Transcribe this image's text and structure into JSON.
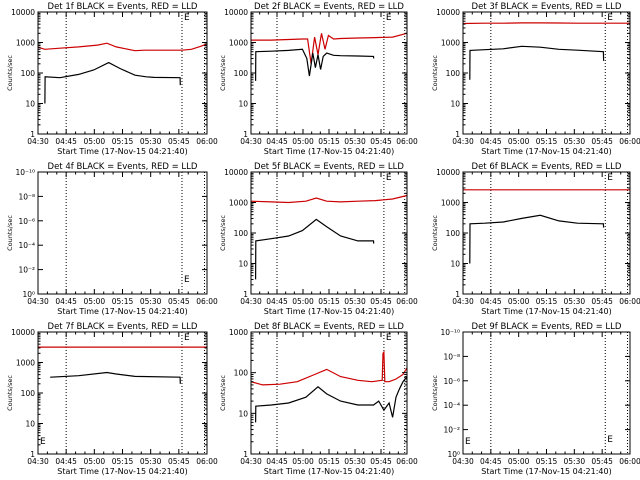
{
  "colors": {
    "events": "#000000",
    "lld": "#cc0000",
    "axis": "#000000",
    "marker": "#000000"
  },
  "common": {
    "ylabel": "Counts/sec",
    "xlabel": "Start Time (17-Nov-15 04:21:40)",
    "xticks": [
      "04:30",
      "04:45",
      "05:00",
      "05:15",
      "05:30",
      "05:45",
      "06:00"
    ],
    "xrange_min": [
      8.33,
      98.33
    ],
    "marker_glyph": "E",
    "dotted_lines_min": [
      23.33,
      85.0,
      97.0
    ],
    "scale": "log"
  },
  "chart_data": [
    {
      "type": "line",
      "title": "Det 1f BLACK = Events, RED = LLD",
      "yticks": [
        "1",
        "10",
        "100",
        "1000",
        "10000"
      ],
      "ylim": [
        1,
        10000
      ],
      "markers": [
        {
          "x": 85.0,
          "y": 10000
        }
      ],
      "series": [
        {
          "name": "RED = LLD",
          "x": [
            8.3,
            12,
            20,
            30,
            40,
            45,
            50,
            55,
            60,
            65,
            70,
            75,
            80,
            85,
            90,
            95,
            98.3
          ],
          "y": [
            700,
            600,
            650,
            720,
            820,
            950,
            720,
            620,
            540,
            560,
            560,
            560,
            560,
            560,
            600,
            750,
            900
          ]
        },
        {
          "name": "BLACK = Events",
          "x": [
            12,
            12.1,
            20,
            30,
            38,
            46,
            52,
            60,
            66,
            70,
            84,
            84.1
          ],
          "y": [
            10,
            75,
            70,
            90,
            125,
            220,
            140,
            85,
            75,
            72,
            70,
            40
          ]
        }
      ]
    },
    {
      "type": "line",
      "title": "Det 2f BLACK = Events, RED = LLD",
      "yticks": [
        "1",
        "10",
        "100",
        "1000",
        "10000"
      ],
      "ylim": [
        1,
        10000
      ],
      "markers": [
        {
          "x": 85.0,
          "y": 10000
        }
      ],
      "series": [
        {
          "name": "RED = LLD",
          "x": [
            8.3,
            20,
            30,
            38,
            41,
            43,
            45,
            47,
            49,
            51,
            53,
            56,
            60,
            70,
            80,
            90,
            98.3
          ],
          "y": [
            1200,
            1200,
            1250,
            1300,
            1300,
            200,
            1500,
            400,
            2000,
            600,
            1700,
            1300,
            1350,
            1400,
            1450,
            1500,
            2000
          ]
        },
        {
          "name": "BLACK = Events",
          "x": [
            11,
            11.1,
            20,
            30,
            38,
            40.5,
            42,
            44,
            45.5,
            47,
            48.5,
            50,
            52,
            56,
            60,
            70,
            79,
            79.1
          ],
          "y": [
            55,
            500,
            520,
            550,
            600,
            300,
            80,
            450,
            150,
            400,
            130,
            350,
            450,
            380,
            370,
            360,
            350,
            300
          ]
        }
      ]
    },
    {
      "type": "line",
      "title": "Det 3f BLACK = Events, RED = LLD",
      "yticks": [
        "1",
        "10",
        "100",
        "1000",
        "10000"
      ],
      "ylim": [
        1,
        10000
      ],
      "markers": [
        {
          "x": 85.0,
          "y": 10000
        }
      ],
      "series": [
        {
          "name": "RED = LLD",
          "x": [
            8.3,
            20,
            30,
            40,
            50,
            60,
            70,
            80,
            90,
            98.3
          ],
          "y": [
            4200,
            4300,
            4300,
            4400,
            4400,
            4350,
            4300,
            4300,
            4300,
            4300
          ]
        },
        {
          "name": "BLACK = Events",
          "x": [
            12,
            12.1,
            20,
            30,
            40,
            50,
            60,
            70,
            84,
            84.1
          ],
          "y": [
            60,
            550,
            580,
            620,
            750,
            700,
            600,
            560,
            500,
            250
          ]
        }
      ]
    },
    {
      "type": "line",
      "title": "Det 4f BLACK = Events, RED = LLD",
      "yticks": [
        "10⁰",
        "10⁻²",
        "10⁻⁴",
        "10⁻⁶",
        "10⁻⁸",
        "10⁻¹⁰"
      ],
      "ylim": [
        1,
        1e-10
      ],
      "markers": [
        {
          "x": 85.0,
          "y": 1e-09
        }
      ],
      "series": []
    },
    {
      "type": "line",
      "title": "Det 5f BLACK = Events, RED = LLD",
      "yticks": [
        "1",
        "10",
        "100",
        "1000",
        "10000"
      ],
      "ylim": [
        1,
        10000
      ],
      "markers": [
        {
          "x": 85.0,
          "y": 10000
        }
      ],
      "series": [
        {
          "name": "RED = LLD",
          "x": [
            8.3,
            20,
            30,
            40,
            46,
            52,
            60,
            70,
            80,
            90,
            98.3
          ],
          "y": [
            1100,
            1050,
            1000,
            1100,
            1400,
            1100,
            1050,
            1100,
            1150,
            1300,
            1700
          ]
        },
        {
          "name": "BLACK = Events",
          "x": [
            11,
            11.1,
            20,
            30,
            38,
            46,
            52,
            60,
            70,
            79,
            79.1
          ],
          "y": [
            3,
            55,
            65,
            80,
            120,
            280,
            160,
            80,
            55,
            55,
            45
          ]
        }
      ]
    },
    {
      "type": "line",
      "title": "Det 6f BLACK = Events, RED = LLD",
      "yticks": [
        "1",
        "10",
        "100",
        "1000",
        "10000"
      ],
      "ylim": [
        1,
        10000
      ],
      "markers": [
        {
          "x": 85.0,
          "y": 10000
        }
      ],
      "series": [
        {
          "name": "RED = LLD",
          "x": [
            8.3,
            20,
            30,
            40,
            50,
            60,
            70,
            80,
            90,
            98.3
          ],
          "y": [
            2600,
            2600,
            2600,
            2600,
            2600,
            2600,
            2600,
            2600,
            2600,
            2600
          ]
        },
        {
          "name": "BLACK = Events",
          "x": [
            12,
            12.1,
            20,
            30,
            40,
            50,
            60,
            70,
            84,
            84.1
          ],
          "y": [
            10,
            200,
            210,
            230,
            300,
            380,
            250,
            210,
            200,
            150
          ]
        }
      ]
    },
    {
      "type": "line",
      "title": "Det 7f BLACK = Events, RED = LLD",
      "yticks": [
        "1",
        "10",
        "100",
        "1000",
        "10000"
      ],
      "ylim": [
        1,
        10000
      ],
      "markers": [
        {
          "x": 85.0,
          "y": 10000
        }
      ],
      "series": [
        {
          "name": "RED = LLD",
          "x": [
            8.3,
            40,
            70,
            98.3
          ],
          "y": [
            3200,
            3200,
            3200,
            3200
          ]
        },
        {
          "name": "BLACK = Events",
          "x": [
            15,
            15.1,
            30,
            45,
            50,
            60,
            84,
            84.1
          ],
          "y": [
            320,
            330,
            370,
            470,
            420,
            350,
            330,
            200
          ]
        }
      ]
    },
    {
      "type": "line",
      "title": "Det 8f BLACK = Events, RED = LLD",
      "yticks": [
        "1",
        "10",
        "100",
        "1000"
      ],
      "ylim": [
        1,
        1000
      ],
      "markers": [
        {
          "x": 85.0,
          "y": 1000
        }
      ],
      "series": [
        {
          "name": "RED = LLD",
          "x": [
            8.3,
            15,
            25,
            35,
            45,
            52,
            60,
            70,
            78,
            84,
            84.5,
            85,
            85.5,
            88,
            92,
            96,
            98.3
          ],
          "y": [
            60,
            50,
            52,
            60,
            90,
            120,
            80,
            65,
            60,
            65,
            300,
            320,
            60,
            60,
            70,
            90,
            130
          ]
        },
        {
          "name": "BLACK = Events",
          "x": [
            11,
            11.1,
            20,
            30,
            40,
            47,
            52,
            60,
            70,
            79,
            82,
            85,
            88,
            90,
            92,
            94,
            96,
            98.3
          ],
          "y": [
            6,
            15,
            16,
            18,
            25,
            45,
            30,
            20,
            16,
            16,
            20,
            12,
            18,
            8,
            25,
            40,
            60,
            80
          ]
        }
      ]
    },
    {
      "type": "line",
      "title": "Det 9f BLACK = Events, RED = LLD",
      "yticks": [
        "10⁰",
        "10⁻²",
        "10⁻⁴",
        "10⁻⁶",
        "10⁻⁸",
        "10⁻¹⁰"
      ],
      "ylim": [
        1,
        1e-10
      ],
      "markers": [
        {
          "x": 85.0,
          "y": 1e-09
        }
      ],
      "series": []
    }
  ]
}
